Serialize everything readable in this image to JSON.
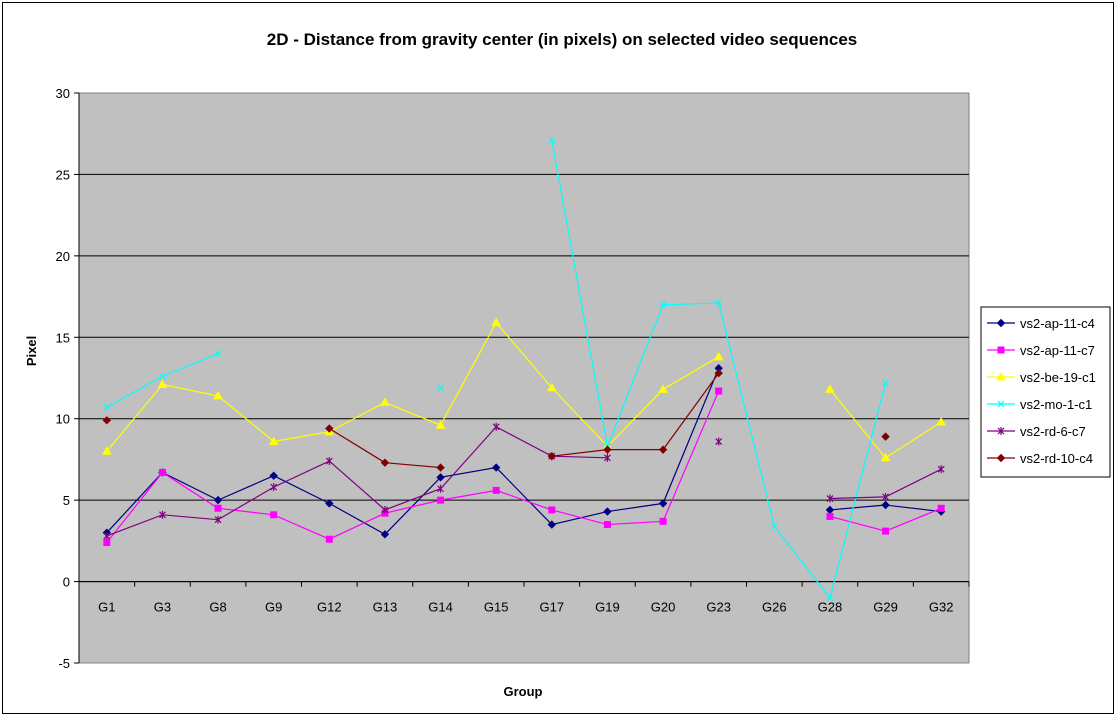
{
  "chart_data": {
    "type": "line",
    "title": "2D - Distance from gravity center (in pixels) on selected video sequences",
    "xlabel": "Group",
    "ylabel": "Pixel",
    "ylim": [
      -5,
      30
    ],
    "yticks": [
      -5,
      0,
      5,
      10,
      15,
      20,
      25,
      30
    ],
    "grid": true,
    "plot_background": "#c0c0c0",
    "legend_position": "right",
    "categories": [
      "G1",
      "G3",
      "G8",
      "G9",
      "G12",
      "G13",
      "G14",
      "G15",
      "G17",
      "G19",
      "G20",
      "G23",
      "G26",
      "G28",
      "G29",
      "G32"
    ],
    "series": [
      {
        "name": "vs2-ap-11-c4",
        "color": "#000080",
        "marker": "diamond",
        "values": [
          3.0,
          6.7,
          5.0,
          6.5,
          4.8,
          2.9,
          6.4,
          7.0,
          3.5,
          4.3,
          4.8,
          13.1,
          null,
          4.4,
          4.7,
          4.3
        ]
      },
      {
        "name": "vs2-ap-11-c7",
        "color": "#ff00ff",
        "marker": "square",
        "values": [
          2.4,
          6.7,
          4.5,
          4.1,
          2.6,
          4.2,
          5.0,
          5.6,
          4.4,
          3.5,
          3.7,
          11.7,
          null,
          4.0,
          3.1,
          4.5
        ]
      },
      {
        "name": "vs2-be-19-c1",
        "color": "#ffff00",
        "marker": "triangle",
        "values": [
          8.0,
          12.1,
          11.4,
          8.6,
          9.2,
          11.0,
          9.6,
          15.9,
          11.9,
          8.3,
          11.8,
          13.8,
          null,
          11.8,
          7.6,
          9.8
        ]
      },
      {
        "name": "vs2-mo-1-c1",
        "color": "#00ffff",
        "marker": "x",
        "values": [
          10.7,
          12.6,
          14.0,
          null,
          null,
          null,
          11.9,
          null,
          27.1,
          8.3,
          17.0,
          17.1,
          3.4,
          -1.0,
          12.2,
          null
        ]
      },
      {
        "name": "vs2-rd-6-c7",
        "color": "#800080",
        "marker": "star",
        "values": [
          2.8,
          4.1,
          3.8,
          5.8,
          7.4,
          4.4,
          5.7,
          9.5,
          7.7,
          7.6,
          null,
          8.6,
          null,
          5.1,
          5.2,
          6.9
        ]
      },
      {
        "name": "vs2-rd-10-c4",
        "color": "#800000",
        "marker": "diamond",
        "values": [
          9.9,
          null,
          null,
          null,
          9.4,
          7.3,
          7.0,
          null,
          7.7,
          8.1,
          8.1,
          12.8,
          null,
          null,
          8.9,
          null
        ]
      }
    ]
  }
}
